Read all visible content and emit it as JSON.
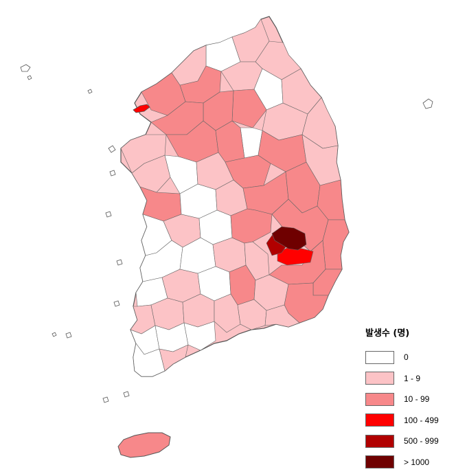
{
  "legend": {
    "title": "발생수 (명)",
    "classes": [
      {
        "label": "0",
        "color": "#ffffff"
      },
      {
        "label": "1 - 9",
        "color": "#fcc3c6"
      },
      {
        "label": "10 - 99",
        "color": "#f7888a"
      },
      {
        "label": "100 - 499",
        "color": "#ff0000"
      },
      {
        "label": "500 - 999",
        "color": "#b10000"
      },
      {
        "label": "> 1000",
        "color": "#6f0000"
      }
    ]
  },
  "colors": {
    "border": "#555555",
    "background": "#ffffff"
  }
}
